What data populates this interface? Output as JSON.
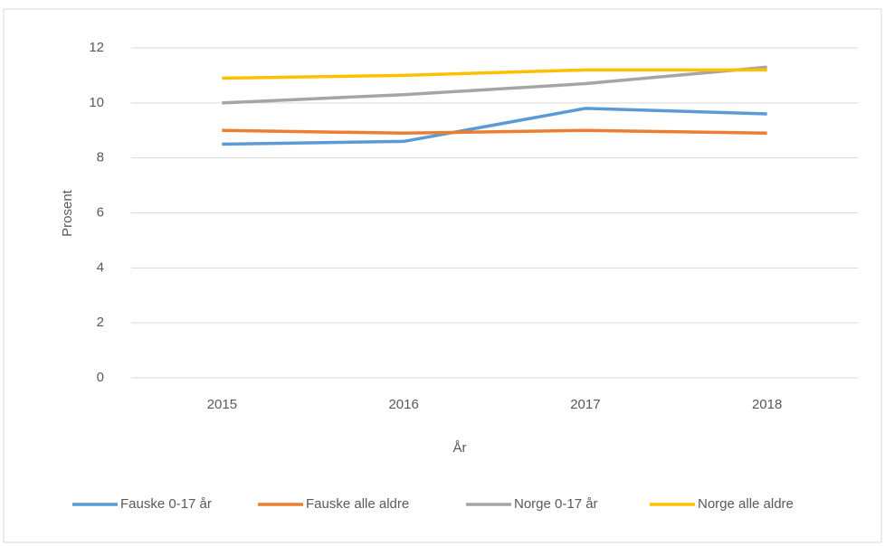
{
  "chart_data": {
    "type": "line",
    "y_label": "Prosent",
    "x_label": "År",
    "categories": [
      "2015",
      "2016",
      "2017",
      "2018"
    ],
    "ylim": [
      0,
      12
    ],
    "yticks": [
      0,
      2,
      4,
      6,
      8,
      10,
      12
    ],
    "grid": true,
    "legend": "bottom",
    "series": [
      {
        "name": "Fauske 0-17 år",
        "color": "#5b9bd5",
        "values": [
          8.5,
          8.6,
          9.8,
          9.6
        ]
      },
      {
        "name": "Fauske alle aldre",
        "color": "#ed7d31",
        "values": [
          9.0,
          8.9,
          9.0,
          8.9
        ]
      },
      {
        "name": "Norge 0-17 år",
        "color": "#a5a5a5",
        "values": [
          10.0,
          10.3,
          10.7,
          11.3
        ]
      },
      {
        "name": "Norge alle aldre",
        "color": "#ffc000",
        "values": [
          10.9,
          11.0,
          11.2,
          11.2
        ]
      }
    ]
  }
}
